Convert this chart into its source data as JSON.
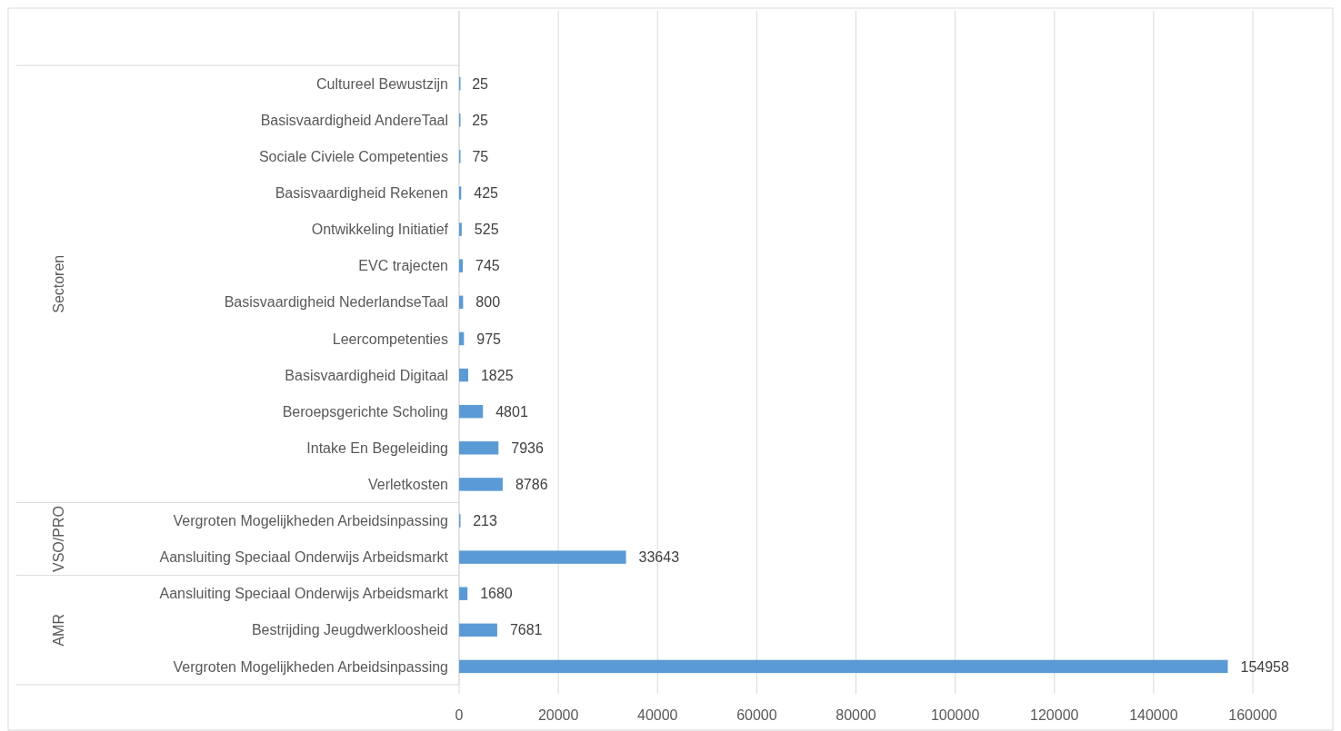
{
  "chart_data": {
    "type": "bar",
    "orientation": "horizontal",
    "categories": [
      null,
      "Cultureel Bewustzijn",
      "Basisvaardigheid AndereTaal",
      "Sociale Civiele Competenties",
      "Basisvaardigheid Rekenen",
      "Ontwikkeling Initiatief",
      "EVC trajecten",
      "Basisvaardigheid NederlandseTaal",
      "Leercompetenties",
      "Basisvaardigheid Digitaal",
      "Beroepsgerichte Scholing",
      "Intake En Begeleiding",
      "Verletkosten",
      "Vergroten Mogelijkheden Arbeidsinpassing",
      "Aansluiting Speciaal Onderwijs Arbeidsmarkt",
      "Aansluiting Speciaal Onderwijs Arbeidsmarkt",
      "Bestrijding Jeugdwerkloosheid",
      "Vergroten Mogelijkheden Arbeidsinpassing"
    ],
    "values": [
      null,
      25,
      25,
      75,
      425,
      525,
      745,
      800,
      975,
      1825,
      4801,
      7936,
      8786,
      213,
      33643,
      1680,
      7681,
      154958
    ],
    "color": "#5b9bd5",
    "xlim": [
      0,
      160000
    ],
    "xticks": [
      0,
      20000,
      40000,
      60000,
      80000,
      100000,
      120000,
      140000,
      160000
    ],
    "grid": "x",
    "data_labels": true,
    "annotations": [
      "Sectoren",
      "VSO/PRO",
      "AMR"
    ]
  }
}
